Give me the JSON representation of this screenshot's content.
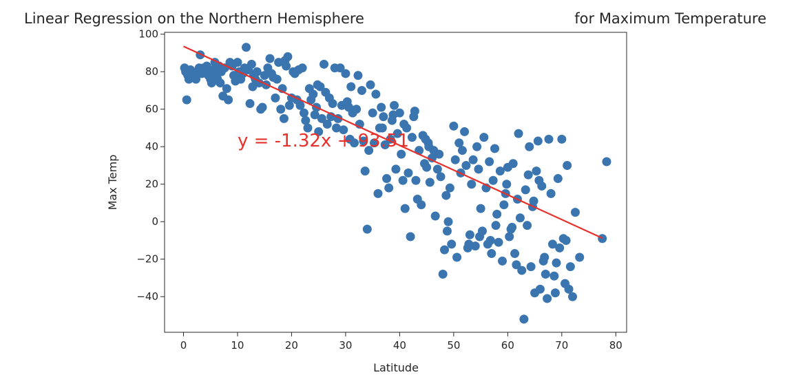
{
  "chart_data": {
    "type": "scatter",
    "title": "Linear Regression on the Northern Hemisphere                    for Maximum Temperature",
    "title_parts": [
      "Linear Regression on the Northern Hemisphere",
      "for Maximum Temperature"
    ],
    "xlabel": "Latitude",
    "ylabel": "Max Temp",
    "xlim": [
      -3.5,
      82
    ],
    "ylim": [
      -59,
      101
    ],
    "xticks": [
      0,
      10,
      20,
      30,
      40,
      50,
      60,
      70,
      80
    ],
    "yticks": [
      100,
      80,
      60,
      40,
      20,
      0,
      -20,
      -40
    ],
    "ytick_labels": [
      "100",
      "80",
      "60",
      "40",
      "20",
      "0",
      "−20",
      "−40"
    ],
    "point_color": "#3a75b0",
    "line_color": "#e8302a",
    "regression": {
      "slope": -1.32,
      "intercept": 93.51,
      "x_range": [
        0,
        77.5
      ]
    },
    "annotation": {
      "text": "y = -1.32x + 93.51",
      "x": 10,
      "y": 40
    },
    "points": [
      [
        0.2,
        82
      ],
      [
        0.4,
        80
      ],
      [
        0.6,
        65
      ],
      [
        0.8,
        78
      ],
      [
        1.0,
        76
      ],
      [
        1.3,
        81
      ],
      [
        1.6,
        79
      ],
      [
        2.0,
        77
      ],
      [
        2.3,
        76
      ],
      [
        2.6,
        80
      ],
      [
        2.9,
        82
      ],
      [
        3.1,
        89
      ],
      [
        3.4,
        79
      ],
      [
        3.7,
        82
      ],
      [
        4.0,
        80
      ],
      [
        4.3,
        83
      ],
      [
        4.6,
        78
      ],
      [
        5.0,
        76
      ],
      [
        5.2,
        74
      ],
      [
        5.5,
        81
      ],
      [
        5.8,
        85
      ],
      [
        6.0,
        79
      ],
      [
        6.3,
        76
      ],
      [
        6.6,
        83
      ],
      [
        7.0,
        80
      ],
      [
        7.3,
        67
      ],
      [
        7.6,
        82
      ],
      [
        8.0,
        71
      ],
      [
        8.3,
        65
      ],
      [
        8.6,
        85
      ],
      [
        9.0,
        83
      ],
      [
        9.3,
        78
      ],
      [
        9.6,
        75
      ],
      [
        10.0,
        85
      ],
      [
        10.3,
        80
      ],
      [
        10.6,
        76
      ],
      [
        11.0,
        79
      ],
      [
        11.3,
        82
      ],
      [
        11.6,
        93
      ],
      [
        12.0,
        81
      ],
      [
        12.3,
        63
      ],
      [
        12.6,
        84
      ],
      [
        13.0,
        78
      ],
      [
        13.3,
        76
      ],
      [
        13.6,
        80
      ],
      [
        14.0,
        74
      ],
      [
        14.3,
        60
      ],
      [
        14.6,
        61
      ],
      [
        15.0,
        78
      ],
      [
        15.3,
        73
      ],
      [
        15.6,
        82
      ],
      [
        16.0,
        87
      ],
      [
        16.3,
        79
      ],
      [
        16.6,
        77
      ],
      [
        17.0,
        66
      ],
      [
        17.3,
        76
      ],
      [
        17.6,
        85
      ],
      [
        18.0,
        60
      ],
      [
        18.3,
        71
      ],
      [
        18.6,
        55
      ],
      [
        19.0,
        83
      ],
      [
        19.3,
        88
      ],
      [
        19.6,
        62
      ],
      [
        20.0,
        66
      ],
      [
        20.3,
        80
      ],
      [
        20.6,
        79
      ],
      [
        21.0,
        65
      ],
      [
        21.3,
        81
      ],
      [
        21.6,
        62
      ],
      [
        22.0,
        82
      ],
      [
        22.3,
        58
      ],
      [
        22.6,
        54
      ],
      [
        23.0,
        50
      ],
      [
        23.3,
        71
      ],
      [
        23.6,
        65
      ],
      [
        24.0,
        68
      ],
      [
        24.3,
        57
      ],
      [
        24.6,
        61
      ],
      [
        25.0,
        48
      ],
      [
        25.3,
        72
      ],
      [
        25.6,
        55
      ],
      [
        26.0,
        84
      ],
      [
        26.3,
        69
      ],
      [
        26.6,
        52
      ],
      [
        27.0,
        66
      ],
      [
        27.3,
        56
      ],
      [
        27.6,
        63
      ],
      [
        28.0,
        82
      ],
      [
        28.3,
        50
      ],
      [
        28.6,
        55
      ],
      [
        29.0,
        82
      ],
      [
        29.3,
        62
      ],
      [
        29.6,
        49
      ],
      [
        30.0,
        79
      ],
      [
        30.3,
        64
      ],
      [
        30.6,
        61
      ],
      [
        31.0,
        72
      ],
      [
        31.3,
        58
      ],
      [
        31.6,
        42
      ],
      [
        32.0,
        60
      ],
      [
        32.3,
        78
      ],
      [
        32.6,
        52
      ],
      [
        33.0,
        70
      ],
      [
        33.3,
        43
      ],
      [
        33.6,
        27
      ],
      [
        34.0,
        -4
      ],
      [
        34.3,
        38
      ],
      [
        34.6,
        73
      ],
      [
        35.0,
        58
      ],
      [
        35.3,
        42
      ],
      [
        35.6,
        68
      ],
      [
        36.0,
        15
      ],
      [
        36.3,
        50
      ],
      [
        36.6,
        61
      ],
      [
        37.0,
        56
      ],
      [
        37.3,
        41
      ],
      [
        37.6,
        23
      ],
      [
        38.0,
        18
      ],
      [
        38.3,
        44
      ],
      [
        38.6,
        54
      ],
      [
        39.0,
        62
      ],
      [
        39.3,
        28
      ],
      [
        39.6,
        47
      ],
      [
        40.0,
        58
      ],
      [
        40.3,
        36
      ],
      [
        40.6,
        22
      ],
      [
        41.0,
        7
      ],
      [
        41.3,
        50
      ],
      [
        41.6,
        26
      ],
      [
        42.0,
        -8
      ],
      [
        42.3,
        45
      ],
      [
        42.6,
        56
      ],
      [
        43.0,
        22
      ],
      [
        43.3,
        12
      ],
      [
        43.6,
        38
      ],
      [
        44.0,
        9
      ],
      [
        44.3,
        46
      ],
      [
        44.6,
        31
      ],
      [
        45.0,
        29
      ],
      [
        45.3,
        42
      ],
      [
        45.6,
        21
      ],
      [
        46.0,
        34
      ],
      [
        46.3,
        38
      ],
      [
        46.6,
        3
      ],
      [
        47.0,
        28
      ],
      [
        47.3,
        36
      ],
      [
        47.6,
        24
      ],
      [
        48.0,
        -28
      ],
      [
        48.3,
        -15
      ],
      [
        48.6,
        14
      ],
      [
        49.0,
        0
      ],
      [
        49.3,
        18
      ],
      [
        49.6,
        -12
      ],
      [
        50.0,
        51
      ],
      [
        50.3,
        33
      ],
      [
        50.6,
        -19
      ],
      [
        51.0,
        42
      ],
      [
        51.3,
        26
      ],
      [
        51.6,
        38
      ],
      [
        52.0,
        48
      ],
      [
        52.3,
        30
      ],
      [
        52.6,
        -14
      ],
      [
        53.0,
        -7
      ],
      [
        53.3,
        20
      ],
      [
        53.6,
        33
      ],
      [
        54.0,
        -13
      ],
      [
        54.3,
        40
      ],
      [
        54.6,
        28
      ],
      [
        55.0,
        7
      ],
      [
        55.3,
        -5
      ],
      [
        55.6,
        45
      ],
      [
        56.0,
        18
      ],
      [
        56.3,
        -12
      ],
      [
        56.6,
        32
      ],
      [
        57.0,
        -17
      ],
      [
        57.3,
        22
      ],
      [
        57.6,
        39
      ],
      [
        58.0,
        4
      ],
      [
        58.3,
        -11
      ],
      [
        58.6,
        27
      ],
      [
        59.0,
        -21
      ],
      [
        59.3,
        9
      ],
      [
        59.6,
        15
      ],
      [
        60.0,
        29
      ],
      [
        60.3,
        -8
      ],
      [
        60.6,
        -4
      ],
      [
        61.0,
        31
      ],
      [
        61.3,
        -17
      ],
      [
        61.6,
        -23
      ],
      [
        62.0,
        47
      ],
      [
        62.3,
        2
      ],
      [
        62.6,
        -26
      ],
      [
        63.0,
        -52
      ],
      [
        63.3,
        17
      ],
      [
        63.6,
        -2
      ],
      [
        64.0,
        40
      ],
      [
        64.3,
        -24
      ],
      [
        64.6,
        8
      ],
      [
        65.0,
        -38
      ],
      [
        65.3,
        27
      ],
      [
        65.6,
        43
      ],
      [
        66.0,
        -36
      ],
      [
        66.3,
        19
      ],
      [
        66.6,
        -21
      ],
      [
        67.0,
        -28
      ],
      [
        67.3,
        -41
      ],
      [
        67.6,
        44
      ],
      [
        68.0,
        15
      ],
      [
        68.3,
        -12
      ],
      [
        68.6,
        -29
      ],
      [
        69.0,
        -22
      ],
      [
        69.3,
        23
      ],
      [
        69.6,
        -14
      ],
      [
        70.0,
        44
      ],
      [
        70.3,
        -9
      ],
      [
        70.6,
        -33
      ],
      [
        71.0,
        30
      ],
      [
        71.3,
        -36
      ],
      [
        71.6,
        -24
      ],
      [
        72.0,
        -40
      ],
      [
        72.5,
        5
      ],
      [
        73.3,
        -19
      ],
      [
        77.5,
        -9
      ],
      [
        78.3,
        32
      ],
      [
        6.8,
        74
      ],
      [
        12.8,
        72
      ],
      [
        18.8,
        86
      ],
      [
        24.8,
        73
      ],
      [
        30.8,
        44
      ],
      [
        36.8,
        50
      ],
      [
        42.8,
        59
      ],
      [
        48.8,
        -5
      ],
      [
        54.8,
        -8
      ],
      [
        60.8,
        -3
      ],
      [
        66.8,
        -19
      ],
      [
        1.8,
        79
      ],
      [
        64.8,
        11
      ],
      [
        59.8,
        20
      ],
      [
        44.8,
        44
      ],
      [
        38.8,
        57
      ],
      [
        40.8,
        52
      ],
      [
        45.4,
        40
      ],
      [
        52.8,
        -12
      ],
      [
        56.8,
        -10
      ],
      [
        63.8,
        25
      ],
      [
        68.8,
        -38
      ],
      [
        70.8,
        -10
      ],
      [
        65.8,
        22
      ],
      [
        61.8,
        12
      ],
      [
        57.8,
        -2
      ]
    ]
  }
}
